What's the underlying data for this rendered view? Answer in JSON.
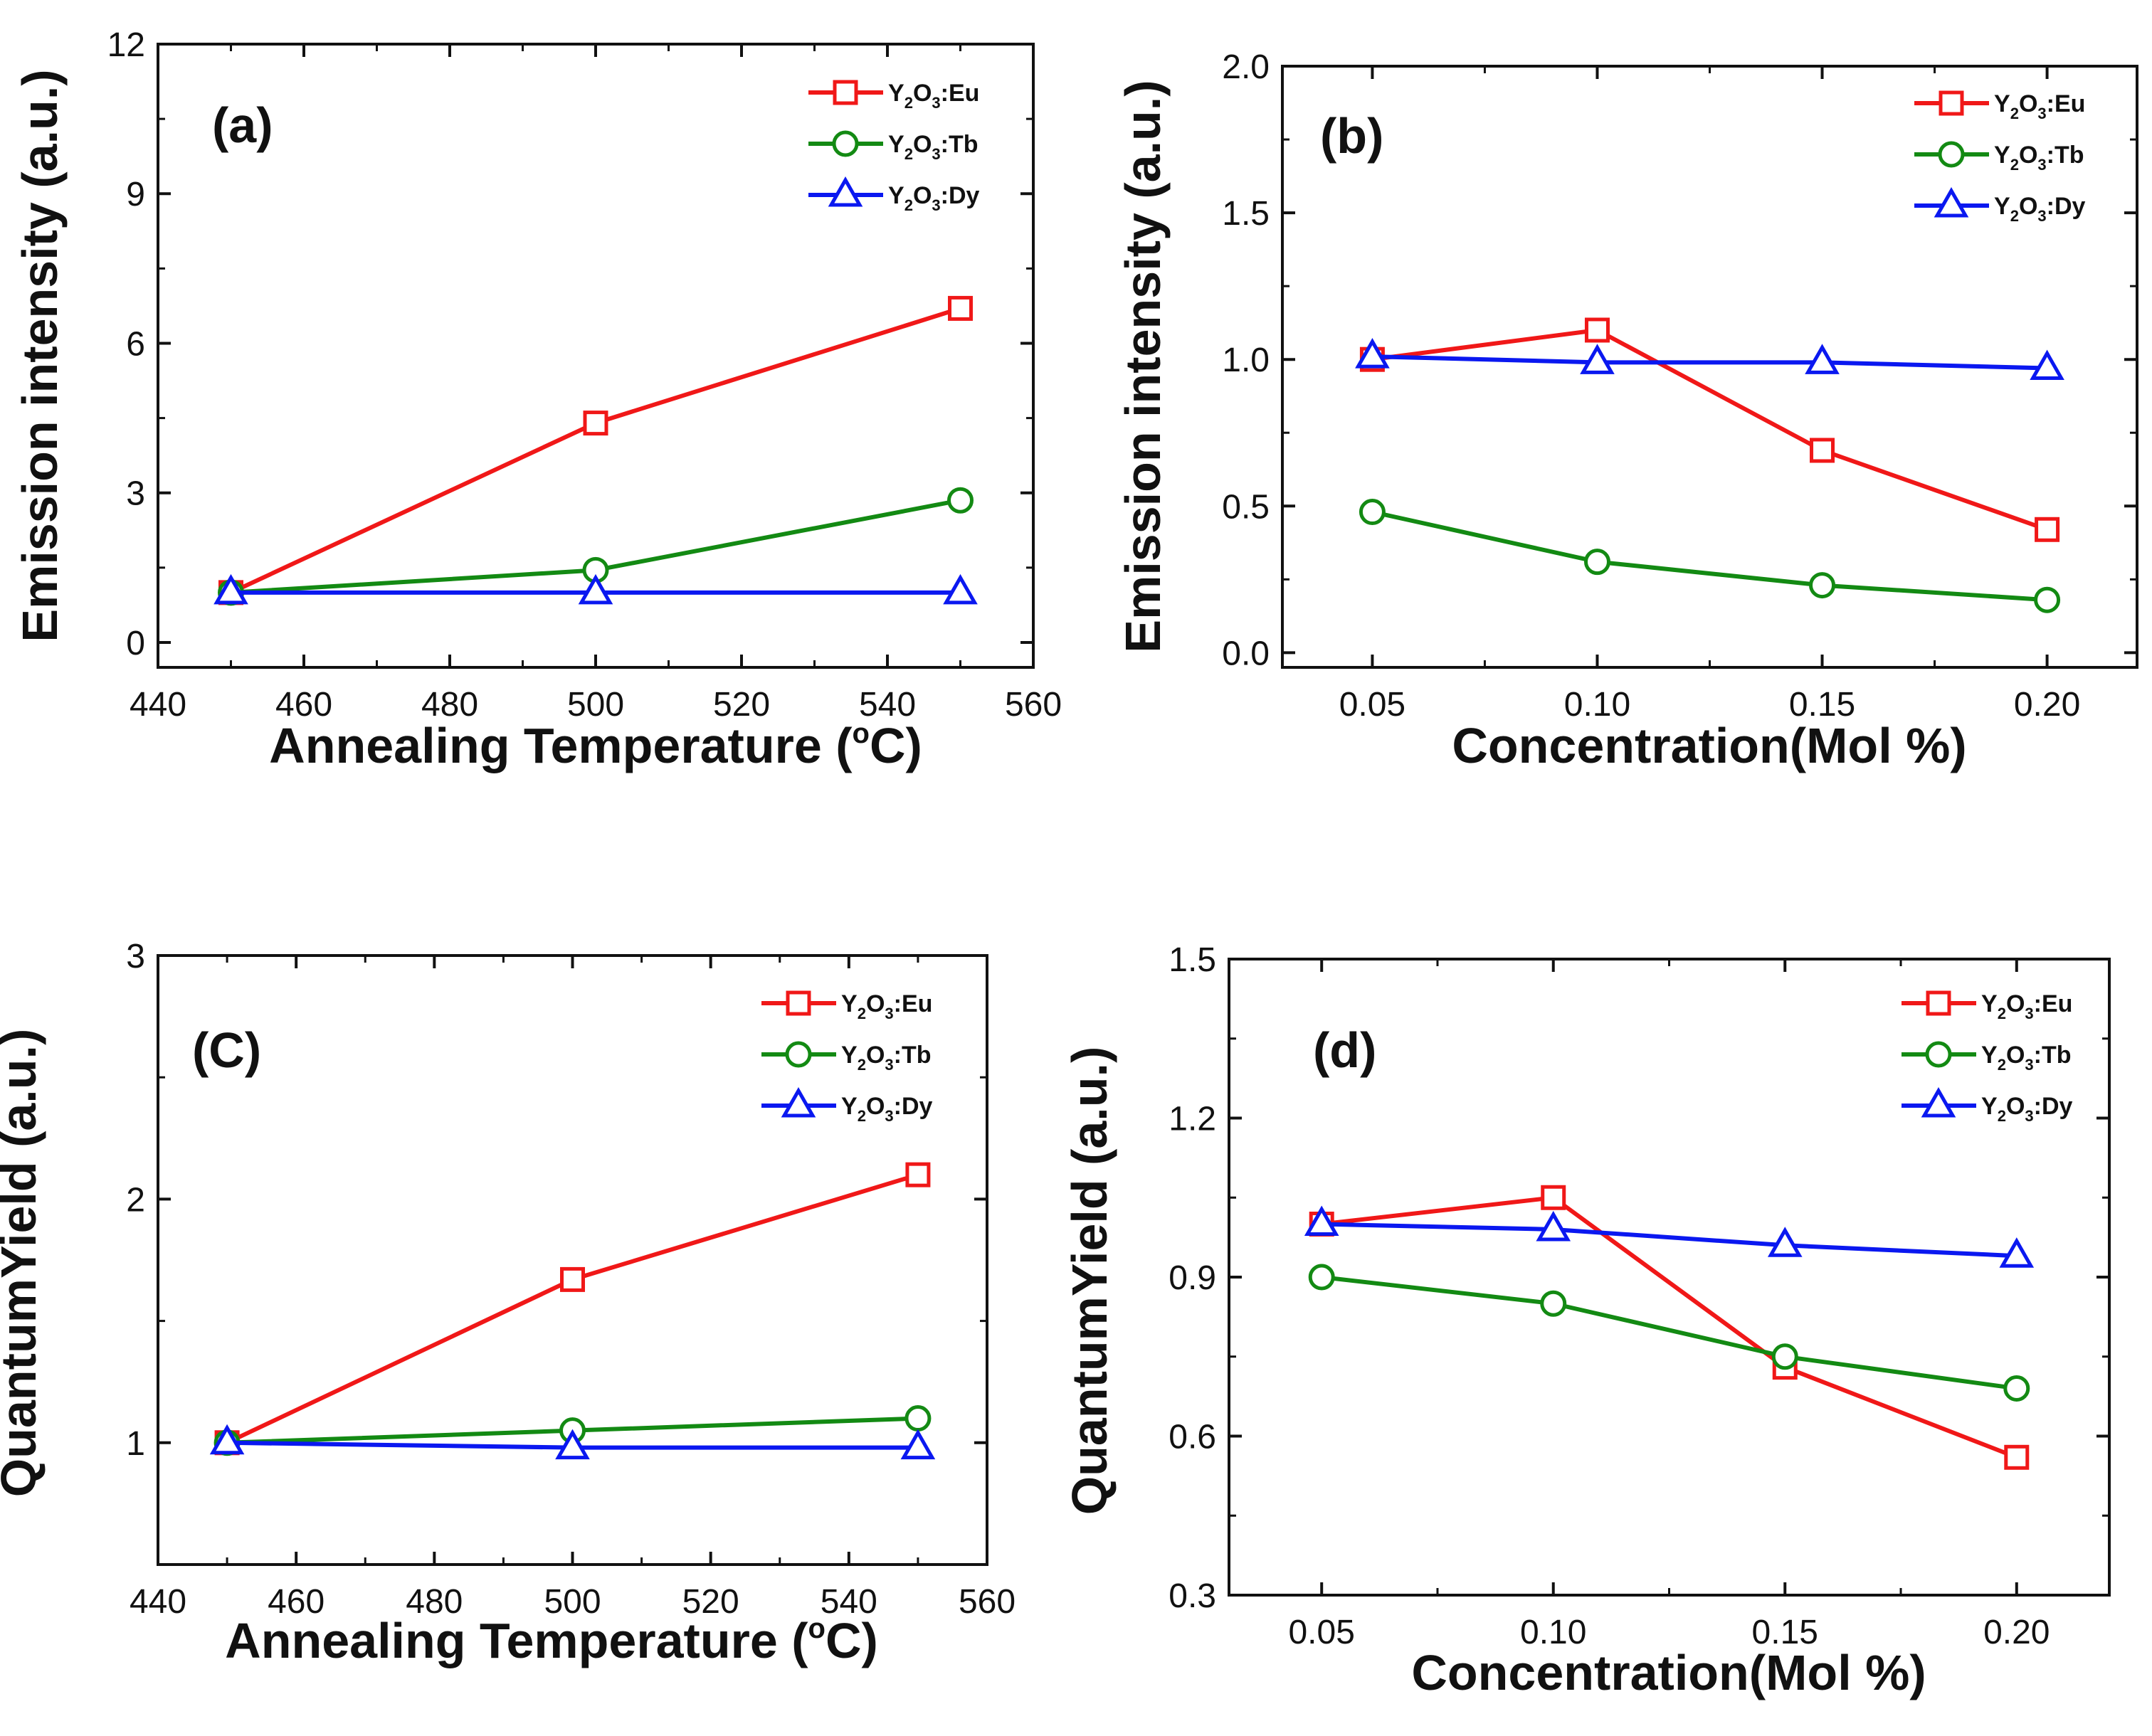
{
  "figure": {
    "colors": {
      "Eu": "#f01818",
      "Tb": "#138a13",
      "Dy": "#0a18f0"
    },
    "markers": {
      "Eu": "square",
      "Tb": "circle",
      "Dy": "triangle"
    }
  },
  "chart_data": [
    {
      "panel": "(a)",
      "type": "line",
      "title": "",
      "xlabel": "Annealing Temperature (°C)",
      "xlabel_main": "Annealing Temperature (",
      "xlabel_sup": "o",
      "xlabel_end": "C)",
      "ylabel": "Emission intensity (a.u.)",
      "xlim": [
        440,
        560
      ],
      "ylim": [
        -0.5,
        12
      ],
      "xticks": [
        440,
        460,
        480,
        500,
        520,
        540,
        560
      ],
      "xtick_labels": [
        "440",
        "460",
        "480",
        "500",
        "520",
        "540",
        "560"
      ],
      "yticks": [
        0,
        3,
        6,
        9,
        12
      ],
      "ytick_labels": [
        "0",
        "3",
        "6",
        "9",
        "12"
      ],
      "legend_position": "top-right",
      "series": [
        {
          "name": "Y2O3:Eu",
          "legend_host": "Y",
          "legend_sub1": "2",
          "legend_mid": "O",
          "legend_sub2": "3",
          "legend_dopant": ":Eu",
          "key": "Eu",
          "x": [
            450,
            500,
            550
          ],
          "values": [
            1.0,
            4.4,
            6.7
          ]
        },
        {
          "name": "Y2O3:Tb",
          "legend_host": "Y",
          "legend_sub1": "2",
          "legend_mid": "O",
          "legend_sub2": "3",
          "legend_dopant": ":Tb",
          "key": "Tb",
          "x": [
            450,
            500,
            550
          ],
          "values": [
            1.0,
            1.45,
            2.85
          ]
        },
        {
          "name": "Y2O3:Dy",
          "legend_host": "Y",
          "legend_sub1": "2",
          "legend_mid": "O",
          "legend_sub2": "3",
          "legend_dopant": ":Dy",
          "key": "Dy",
          "x": [
            450,
            500,
            550
          ],
          "values": [
            1.0,
            1.0,
            1.0
          ]
        }
      ]
    },
    {
      "panel": "(b)",
      "type": "line",
      "title": "",
      "xlabel": "Concentration(Mol %)",
      "xlabel_main": "Concentration(Mol %)",
      "xlabel_sup": "",
      "xlabel_end": "",
      "ylabel": "Emission intensity (a.u.)",
      "xlim": [
        0.03,
        0.22
      ],
      "ylim": [
        -0.05,
        2.0
      ],
      "xticks": [
        0.05,
        0.1,
        0.15,
        0.2
      ],
      "xtick_labels": [
        "0.05",
        "0.10",
        "0.15",
        "0.20"
      ],
      "yticks": [
        0.0,
        0.5,
        1.0,
        1.5,
        2.0
      ],
      "ytick_labels": [
        "0.0",
        "0.5",
        "1.0",
        "1.5",
        "2.0"
      ],
      "legend_position": "top-right",
      "series": [
        {
          "name": "Y2O3:Eu",
          "legend_host": "Y",
          "legend_sub1": "2",
          "legend_mid": "O",
          "legend_sub2": "3",
          "legend_dopant": ":Eu",
          "key": "Eu",
          "x": [
            0.05,
            0.1,
            0.15,
            0.2
          ],
          "values": [
            1.0,
            1.1,
            0.69,
            0.42
          ]
        },
        {
          "name": "Y2O3:Tb",
          "legend_host": "Y",
          "legend_sub1": "2",
          "legend_mid": "O",
          "legend_sub2": "3",
          "legend_dopant": ":Tb",
          "key": "Tb",
          "x": [
            0.05,
            0.1,
            0.15,
            0.2
          ],
          "values": [
            0.48,
            0.31,
            0.23,
            0.18
          ]
        },
        {
          "name": "Y2O3:Dy",
          "legend_host": "Y",
          "legend_sub1": "2",
          "legend_mid": "O",
          "legend_sub2": "3",
          "legend_dopant": ":Dy",
          "key": "Dy",
          "x": [
            0.05,
            0.1,
            0.15,
            0.2
          ],
          "values": [
            1.01,
            0.99,
            0.99,
            0.97
          ]
        }
      ]
    },
    {
      "panel": "(C)",
      "type": "line",
      "title": "",
      "xlabel": "Annealing Temperature (°C)",
      "xlabel_main": "Annealing Temperature (",
      "xlabel_sup": "o",
      "xlabel_end": "C)",
      "ylabel": "QuantumYield (a.u.)",
      "xlim": [
        440,
        560
      ],
      "ylim": [
        0.5,
        3.0
      ],
      "xticks": [
        440,
        460,
        480,
        500,
        520,
        540,
        560
      ],
      "xtick_labels": [
        "440",
        "460",
        "480",
        "500",
        "520",
        "540",
        "560"
      ],
      "yticks": [
        1,
        2,
        3
      ],
      "ytick_labels": [
        "1",
        "2",
        "3"
      ],
      "legend_position": "top-right",
      "series": [
        {
          "name": "Y2O3:Eu",
          "legend_host": "Y",
          "legend_sub1": "2",
          "legend_mid": "O",
          "legend_sub2": "3",
          "legend_dopant": ":Eu",
          "key": "Eu",
          "x": [
            450,
            500,
            550
          ],
          "values": [
            1.0,
            1.67,
            2.1
          ]
        },
        {
          "name": "Y2O3:Tb",
          "legend_host": "Y",
          "legend_sub1": "2",
          "legend_mid": "O",
          "legend_sub2": "3",
          "legend_dopant": ":Tb",
          "key": "Tb",
          "x": [
            450,
            500,
            550
          ],
          "values": [
            1.0,
            1.05,
            1.1
          ]
        },
        {
          "name": "Y2O3:Dy",
          "legend_host": "Y",
          "legend_sub1": "2",
          "legend_mid": "O",
          "legend_sub2": "3",
          "legend_dopant": ":Dy",
          "key": "Dy",
          "x": [
            450,
            500,
            550
          ],
          "values": [
            1.0,
            0.98,
            0.98
          ]
        }
      ]
    },
    {
      "panel": "(d)",
      "type": "line",
      "title": "",
      "xlabel": "Concentration(Mol %)",
      "xlabel_main": "Concentration(Mol %)",
      "xlabel_sup": "",
      "xlabel_end": "",
      "ylabel": "QuantumYield (a.u.)",
      "xlim": [
        0.03,
        0.22
      ],
      "ylim": [
        0.3,
        1.5
      ],
      "xticks": [
        0.05,
        0.1,
        0.15,
        0.2
      ],
      "xtick_labels": [
        "0.05",
        "0.10",
        "0.15",
        "0.20"
      ],
      "yticks": [
        0.3,
        0.6,
        0.9,
        1.2,
        1.5
      ],
      "ytick_labels": [
        "0.3",
        "0.6",
        "0.9",
        "1.2",
        "1.5"
      ],
      "legend_position": "top-right",
      "series": [
        {
          "name": "Y2O3:Eu",
          "legend_host": "Y",
          "legend_sub1": "2",
          "legend_mid": "O",
          "legend_sub2": "3",
          "legend_dopant": ":Eu",
          "key": "Eu",
          "x": [
            0.05,
            0.1,
            0.15,
            0.2
          ],
          "values": [
            1.0,
            1.05,
            0.73,
            0.56
          ]
        },
        {
          "name": "Y2O3:Tb",
          "legend_host": "Y",
          "legend_sub1": "2",
          "legend_mid": "O",
          "legend_sub2": "3",
          "legend_dopant": ":Tb",
          "key": "Tb",
          "x": [
            0.05,
            0.1,
            0.15,
            0.2
          ],
          "values": [
            0.9,
            0.85,
            0.75,
            0.69
          ]
        },
        {
          "name": "Y2O3:Dy",
          "legend_host": "Y",
          "legend_sub1": "2",
          "legend_mid": "O",
          "legend_sub2": "3",
          "legend_dopant": ":Dy",
          "key": "Dy",
          "x": [
            0.05,
            0.1,
            0.15,
            0.2
          ],
          "values": [
            1.0,
            0.99,
            0.96,
            0.94
          ]
        }
      ]
    }
  ]
}
